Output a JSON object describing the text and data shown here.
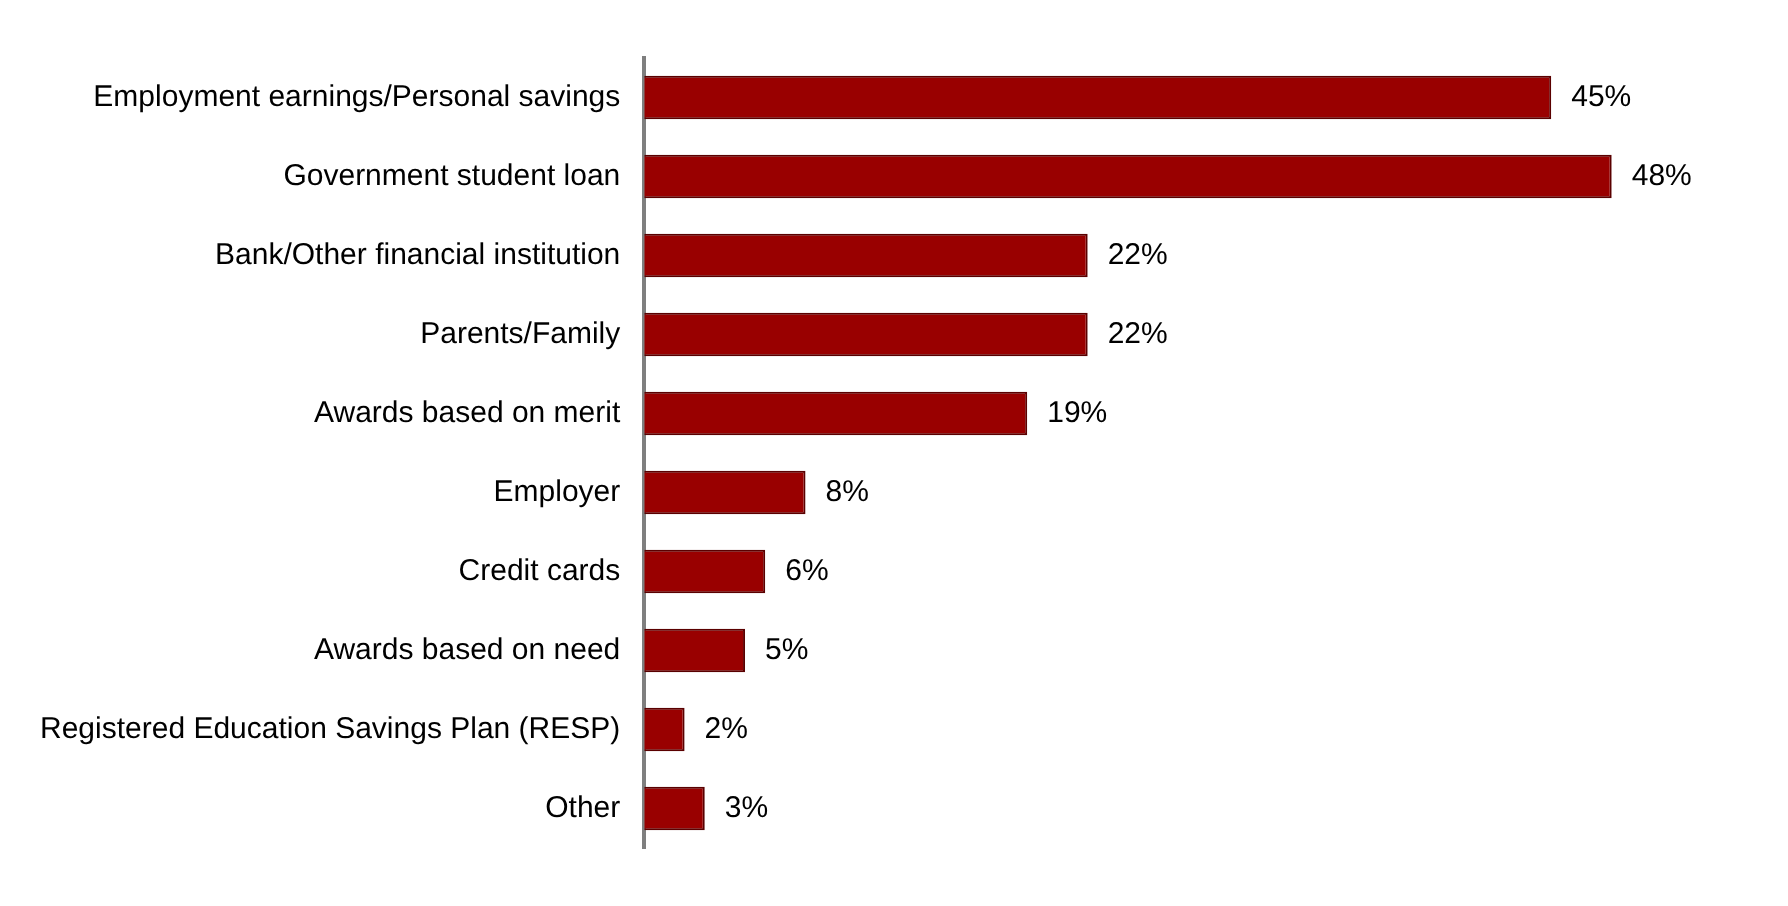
{
  "chart_data": {
    "type": "bar",
    "orientation": "horizontal",
    "categories": [
      "Employment earnings/Personal savings",
      "Government student loan",
      "Bank/Other financial institution",
      "Parents/Family",
      "Awards based on merit",
      "Employer",
      "Credit cards",
      "Awards based on need",
      "Registered Education Savings Plan (RESP)",
      "Other"
    ],
    "values": [
      45,
      48,
      22,
      22,
      19,
      8,
      6,
      5,
      2,
      3
    ],
    "value_labels": [
      "45%",
      "48%",
      "22%",
      "22%",
      "19%",
      "8%",
      "6%",
      "5%",
      "2%",
      "3%"
    ],
    "color": "#990000",
    "legend": false
  }
}
